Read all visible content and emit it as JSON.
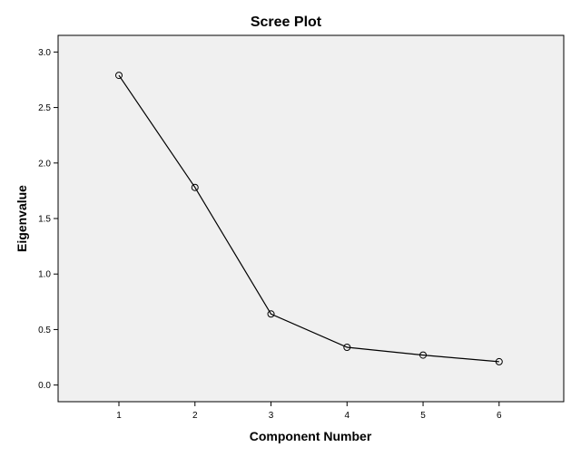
{
  "chart_data": {
    "type": "line",
    "title": "Scree Plot",
    "xlabel": "Component Number",
    "ylabel": "Eigenvalue",
    "x": [
      1,
      2,
      3,
      4,
      5,
      6
    ],
    "series": [
      {
        "values": [
          2.79,
          1.78,
          0.64,
          0.34,
          0.27,
          0.21
        ]
      }
    ],
    "xlim": [
      0.2,
      6.85
    ],
    "ylim": [
      -0.15,
      3.15
    ],
    "xticks": [
      1,
      2,
      3,
      4,
      5,
      6
    ],
    "xtick_labels": [
      "1",
      "2",
      "3",
      "4",
      "5",
      "6"
    ],
    "yticks": [
      0.0,
      0.5,
      1.0,
      1.5,
      2.0,
      2.5,
      3.0
    ],
    "ytick_labels": [
      "0.0",
      "0.5",
      "1.0",
      "1.5",
      "2.0",
      "2.5",
      "3.0"
    ],
    "markers": "hollow-circle",
    "grid": false,
    "legend": "none",
    "colors": {
      "plot_background": "#f0f0f0",
      "line": "#000000",
      "frame": "#000000"
    }
  }
}
